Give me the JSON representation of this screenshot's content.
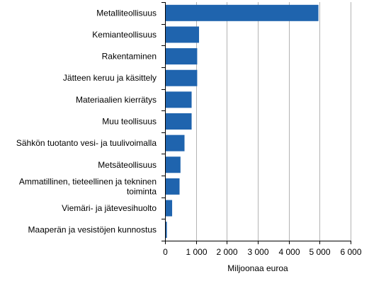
{
  "chart_data": {
    "type": "bar",
    "orientation": "horizontal",
    "categories": [
      [
        "Metalliteollisuus"
      ],
      [
        "Kemianteollisuus"
      ],
      [
        "Rakentaminen"
      ],
      [
        "Jätteen keruu ja käsittely"
      ],
      [
        "Materiaalien kierrätys"
      ],
      [
        "Muu teollisuus"
      ],
      [
        "Sähkön tuotanto vesi- ja tuulivoimalla"
      ],
      [
        "Metsäteollisuus"
      ],
      [
        "Ammatillinen, tieteellinen ja tekninen",
        "toiminta"
      ],
      [
        "Viemäri- ja jätevesihuolto"
      ],
      [
        "Maaperän ja vesistöjen kunnostus"
      ]
    ],
    "values": [
      4960,
      1100,
      1040,
      1040,
      860,
      860,
      630,
      500,
      470,
      230,
      60
    ],
    "xlabel": "Miljoonaa euroa",
    "xlim": [
      0,
      6000
    ],
    "xticks": [
      0,
      1000,
      2000,
      3000,
      4000,
      5000,
      6000
    ],
    "xtick_labels": [
      "0",
      "1 000",
      "2 000",
      "3 000",
      "4 000",
      "5 000",
      "6 000"
    ],
    "grid": "vertical",
    "legend": "none",
    "colors": {
      "bar": "#1f64ae",
      "grid": "#b3b3b3",
      "axis": "#000000"
    }
  }
}
